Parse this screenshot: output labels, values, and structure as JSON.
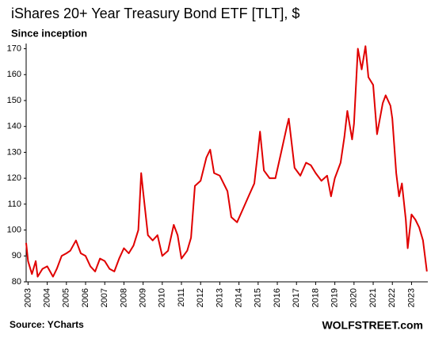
{
  "chart_data": {
    "type": "line",
    "title": "iShares 20+ Year Treasury Bond ETF [TLT], $",
    "subtitle": "Since inception",
    "source": "Source: YCharts",
    "brand": "WOLFSTREET.com",
    "grid": false,
    "x": [
      2002.9,
      2003.0,
      2003.2,
      2003.4,
      2003.5,
      2003.75,
      2004.0,
      2004.3,
      2004.5,
      2004.75,
      2005.0,
      2005.2,
      2005.5,
      2005.75,
      2006.0,
      2006.25,
      2006.5,
      2006.75,
      2007.0,
      2007.25,
      2007.5,
      2007.75,
      2008.0,
      2008.25,
      2008.5,
      2008.75,
      2008.9,
      2009.0,
      2009.25,
      2009.5,
      2009.75,
      2010.0,
      2010.3,
      2010.6,
      2010.8,
      2011.0,
      2011.3,
      2011.5,
      2011.7,
      2012.0,
      2012.3,
      2012.5,
      2012.7,
      2013.0,
      2013.4,
      2013.6,
      2013.9,
      2014.2,
      2014.5,
      2014.8,
      2015.0,
      2015.1,
      2015.3,
      2015.6,
      2015.9,
      2016.2,
      2016.5,
      2016.6,
      2016.9,
      2017.2,
      2017.5,
      2017.75,
      2018.0,
      2018.3,
      2018.6,
      2018.8,
      2019.0,
      2019.3,
      2019.5,
      2019.65,
      2019.9,
      2020.0,
      2020.2,
      2020.4,
      2020.6,
      2020.75,
      2021.0,
      2021.2,
      2021.5,
      2021.65,
      2021.9,
      2022.0,
      2022.2,
      2022.35,
      2022.5,
      2022.7,
      2022.8,
      2023.0,
      2023.2,
      2023.4,
      2023.6,
      2023.8
    ],
    "series": [
      {
        "name": "TLT",
        "color": "#e00000",
        "values": [
          95,
          88,
          83,
          88,
          82,
          85,
          86,
          82,
          85,
          90,
          91,
          92,
          96,
          91,
          90,
          86,
          84,
          89,
          88,
          85,
          84,
          89,
          93,
          91,
          94,
          100,
          122,
          115,
          98,
          96,
          98,
          90,
          92,
          102,
          98,
          89,
          92,
          97,
          117,
          119,
          128,
          131,
          122,
          121,
          115,
          105,
          103,
          108,
          113,
          118,
          131,
          138,
          123,
          120,
          120,
          130,
          140,
          143,
          124,
          121,
          126,
          125,
          122,
          119,
          121,
          113,
          120,
          126,
          136,
          146,
          135,
          141,
          170,
          162,
          171,
          159,
          156,
          137,
          149,
          152,
          148,
          143,
          122,
          113,
          118,
          104,
          93,
          106,
          104,
          101,
          96,
          84
        ]
      }
    ],
    "xlim": [
      2002.9,
      2023.85
    ],
    "xticks": [
      2003,
      2004,
      2005,
      2006,
      2007,
      2008,
      2009,
      2010,
      2011,
      2012,
      2013,
      2014,
      2015,
      2016,
      2017,
      2018,
      2019,
      2020,
      2021,
      2022,
      2023
    ],
    "ylim": [
      80,
      172
    ],
    "yticks": [
      80,
      90,
      100,
      110,
      120,
      130,
      140,
      150,
      160,
      170
    ]
  }
}
